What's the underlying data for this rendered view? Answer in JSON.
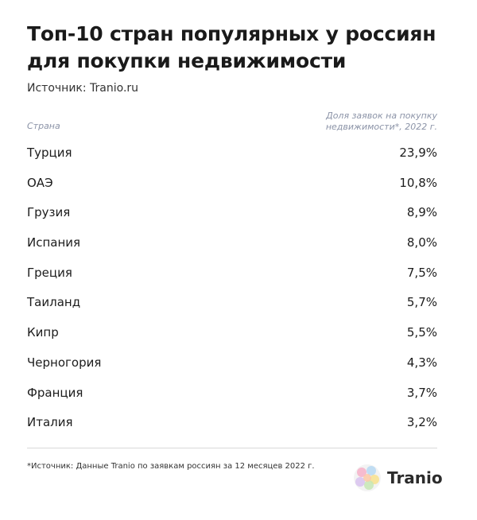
{
  "chart_data": {
    "type": "table",
    "title": "Топ-10 стран популярных у россиян для покупки недвижимости",
    "source": "Источник: Tranio.ru",
    "columns": {
      "country": "Страна",
      "share_line1": "Доля заявок на покупку",
      "share_line2": "недвижимости*, 2022 г."
    },
    "rows": [
      {
        "country": "Турция",
        "value": 23.9,
        "label": "23,9%"
      },
      {
        "country": "ОАЭ",
        "value": 10.8,
        "label": "10,8%"
      },
      {
        "country": "Грузия",
        "value": 8.9,
        "label": "8,9%"
      },
      {
        "country": "Испания",
        "value": 8.0,
        "label": "8,0%"
      },
      {
        "country": "Греция",
        "value": 7.5,
        "label": "7,5%"
      },
      {
        "country": "Таиланд",
        "value": 5.7,
        "label": "5,7%"
      },
      {
        "country": "Кипр",
        "value": 5.5,
        "label": "5,5%"
      },
      {
        "country": "Черногория",
        "value": 4.3,
        "label": "4,3%"
      },
      {
        "country": "Франция",
        "value": 3.7,
        "label": "3,7%"
      },
      {
        "country": "Италия",
        "value": 3.2,
        "label": "3,2%"
      }
    ],
    "footnote": "*Источник: Данные Tranio по заявкам россиян за 12 месяцев 2022 г."
  },
  "logo": {
    "text": "Tranio",
    "icon": "tranio-logo-icon",
    "colors": [
      "#f6b0c8",
      "#b6d8f2",
      "#f7e08c",
      "#c5e6b4",
      "#d8c2ef",
      "#fbc9a6"
    ]
  },
  "colors": {
    "header_text": "#8b93a7",
    "body_text": "#1c1c1c",
    "rule": "#d9d9d9"
  }
}
